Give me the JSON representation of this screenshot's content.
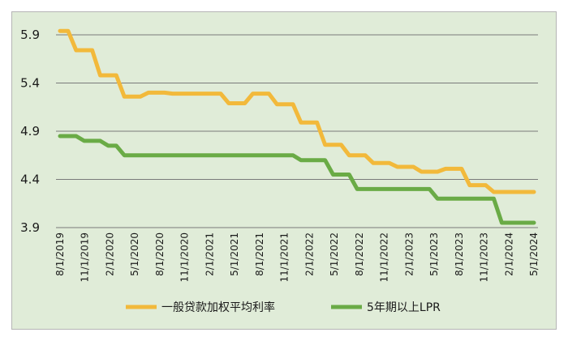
{
  "chart_data": {
    "type": "line",
    "title": "",
    "xlabel": "",
    "ylabel": "",
    "ylim": [
      3.9,
      5.9
    ],
    "yticks": [
      "3.9",
      "4.4",
      "4.9",
      "5.4",
      "5.9"
    ],
    "grid": "horizontal",
    "legend_position": "bottom",
    "x_tick_labels": [
      "8/1/2019",
      "11/1/2019",
      "2/1/2020",
      "5/1/2020",
      "8/1/2020",
      "11/1/2020",
      "2/1/2021",
      "5/1/2021",
      "8/1/2021",
      "11/1/2021",
      "2/1/2022",
      "5/1/2022",
      "8/1/2022",
      "11/1/2022",
      "2/1/2023",
      "5/1/2023",
      "8/1/2023",
      "11/1/2023",
      "2/1/2024",
      "5/1/2024"
    ],
    "series": [
      {
        "name": "一般贷款加权平均利率",
        "color": "#f2b93b",
        "values": [
          5.94,
          5.94,
          5.74,
          5.74,
          5.74,
          5.48,
          5.48,
          5.48,
          5.26,
          5.26,
          5.26,
          5.3,
          5.3,
          5.3,
          5.29,
          5.29,
          5.29,
          5.29,
          5.29,
          5.29,
          5.29,
          5.19,
          5.19,
          5.19,
          5.29,
          5.29,
          5.29,
          5.18,
          5.18,
          5.18,
          4.99,
          4.99,
          4.99,
          4.76,
          4.76,
          4.76,
          4.65,
          4.65,
          4.65,
          4.57,
          4.57,
          4.57,
          4.53,
          4.53,
          4.53,
          4.48,
          4.48,
          4.48,
          4.51,
          4.51,
          4.51,
          4.34,
          4.34,
          4.34,
          4.27,
          4.27,
          4.27,
          4.27,
          4.27,
          4.27
        ]
      },
      {
        "name": "5年期以上LPR",
        "color": "#6aab46",
        "values": [
          4.85,
          4.85,
          4.85,
          4.8,
          4.8,
          4.8,
          4.75,
          4.75,
          4.65,
          4.65,
          4.65,
          4.65,
          4.65,
          4.65,
          4.65,
          4.65,
          4.65,
          4.65,
          4.65,
          4.65,
          4.65,
          4.65,
          4.65,
          4.65,
          4.65,
          4.65,
          4.65,
          4.65,
          4.65,
          4.65,
          4.6,
          4.6,
          4.6,
          4.6,
          4.45,
          4.45,
          4.45,
          4.3,
          4.3,
          4.3,
          4.3,
          4.3,
          4.3,
          4.3,
          4.3,
          4.3,
          4.3,
          4.2,
          4.2,
          4.2,
          4.2,
          4.2,
          4.2,
          4.2,
          4.2,
          3.95,
          3.95,
          3.95,
          3.95,
          3.95
        ]
      }
    ]
  }
}
